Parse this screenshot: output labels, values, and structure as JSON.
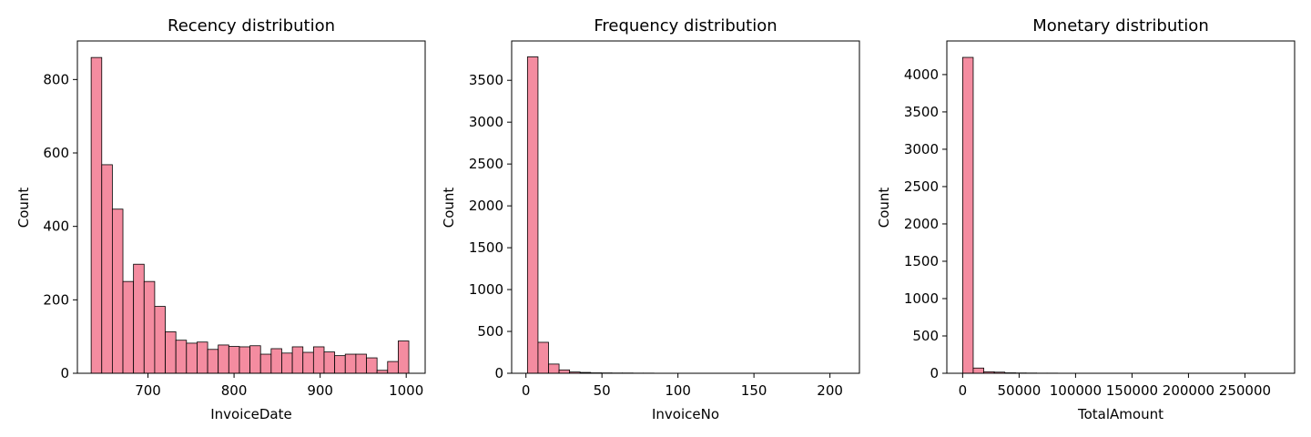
{
  "chart_data": [
    {
      "type": "bar",
      "title": "Recency distribution",
      "xlabel": "InvoiceDate",
      "ylabel": "Count",
      "xlim": [
        618,
        1022
      ],
      "ylim": [
        0,
        905
      ],
      "xticks": [
        700,
        800,
        900,
        1000
      ],
      "yticks": [
        0,
        200,
        400,
        600,
        800
      ],
      "bin_start": 634,
      "bin_width": 12.3,
      "values": [
        860,
        568,
        447,
        250,
        297,
        250,
        182,
        113,
        90,
        82,
        85,
        65,
        77,
        73,
        72,
        75,
        52,
        67,
        55,
        72,
        57,
        72,
        58,
        48,
        52,
        52,
        42,
        8,
        32,
        88
      ],
      "grid": false,
      "bar_color": "#f48ca0"
    },
    {
      "type": "bar",
      "title": "Frequency distribution",
      "xlabel": "InvoiceNo",
      "ylabel": "Count",
      "xlim": [
        -9.4,
        219.4
      ],
      "ylim": [
        0,
        3970
      ],
      "xticks": [
        0,
        50,
        100,
        150,
        200
      ],
      "yticks": [
        0,
        500,
        1000,
        1500,
        2000,
        2500,
        3000,
        3500
      ],
      "bin_start": 1,
      "bin_width": 6.93,
      "values": [
        3780,
        370,
        110,
        40,
        15,
        10,
        5,
        4,
        3,
        3,
        2,
        2,
        1,
        1,
        1,
        1,
        0,
        0,
        0,
        0,
        0,
        0,
        0,
        0,
        0,
        0,
        0,
        0,
        0,
        0
      ],
      "grid": false,
      "bar_color": "#f48ca0"
    },
    {
      "type": "bar",
      "title": "Monetary distribution",
      "xlabel": "TotalAmount",
      "ylabel": "Count",
      "xlim": [
        -14000,
        294000
      ],
      "ylim": [
        0,
        4450
      ],
      "xticks": [
        0,
        50000,
        100000,
        150000,
        200000,
        250000
      ],
      "yticks": [
        0,
        500,
        1000,
        1500,
        2000,
        2500,
        3000,
        3500,
        4000
      ],
      "bin_start": 0,
      "bin_width": 9350,
      "values": [
        4230,
        70,
        20,
        15,
        6,
        4,
        3,
        2,
        2,
        1,
        1,
        1,
        1,
        0,
        0,
        0,
        0,
        0,
        0,
        0,
        0,
        0,
        0,
        0,
        0,
        0,
        0,
        0,
        0,
        1
      ],
      "grid": false,
      "bar_color": "#f48ca0"
    }
  ]
}
